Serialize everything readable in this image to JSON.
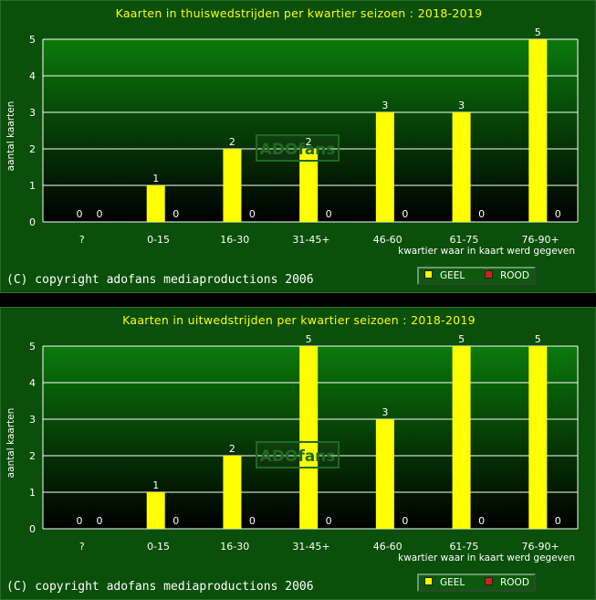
{
  "colors": {
    "geel": "#ffff00",
    "rood": "#cc2222",
    "background": "#0a4f0a",
    "gridline": "#ffffff"
  },
  "panels": [
    {
      "title": "Kaarten in thuiswedstrijden per kwartier seizoen : 2018-2019",
      "ylabel": "aantal kaarten",
      "xlabel": "kwartier waar in kaart werd gegeven",
      "copyright": "(C) copyright adofans mediaproductions 2006",
      "watermark": "ADOfans",
      "legend": [
        "GEEL",
        "ROOD"
      ]
    },
    {
      "title": "Kaarten in uitwedstrijden per kwartier seizoen : 2018-2019",
      "ylabel": "aantal kaarten",
      "xlabel": "kwartier waar in kaart werd gegeven",
      "copyright": "(C) copyright adofans mediaproductions 2006",
      "watermark": "ADOfans",
      "legend": [
        "GEEL",
        "ROOD"
      ]
    }
  ],
  "chart_data": [
    {
      "type": "bar",
      "title": "Kaarten in thuiswedstrijden per kwartier seizoen : 2018-2019",
      "xlabel": "kwartier waar in kaart werd gegeven",
      "ylabel": "aantal kaarten",
      "categories": [
        "?",
        "0-15",
        "16-30",
        "31-45+",
        "46-60",
        "61-75",
        "76-90+"
      ],
      "series": [
        {
          "name": "GEEL",
          "values": [
            0,
            1,
            2,
            2,
            3,
            3,
            5
          ]
        },
        {
          "name": "ROOD",
          "values": [
            0,
            0,
            0,
            0,
            0,
            0,
            0
          ]
        }
      ],
      "ylim": [
        0,
        5
      ],
      "yticks": [
        0,
        1,
        2,
        3,
        4,
        5
      ],
      "grid": true,
      "legend": "bottom-right"
    },
    {
      "type": "bar",
      "title": "Kaarten in uitwedstrijden per kwartier seizoen : 2018-2019",
      "xlabel": "kwartier waar in kaart werd gegeven",
      "ylabel": "aantal kaarten",
      "categories": [
        "?",
        "0-15",
        "16-30",
        "31-45+",
        "46-60",
        "61-75",
        "76-90+"
      ],
      "series": [
        {
          "name": "GEEL",
          "values": [
            0,
            1,
            2,
            5,
            3,
            5,
            5
          ]
        },
        {
          "name": "ROOD",
          "values": [
            0,
            0,
            0,
            0,
            0,
            0,
            0
          ]
        }
      ],
      "ylim": [
        0,
        5
      ],
      "yticks": [
        0,
        1,
        2,
        3,
        4,
        5
      ],
      "grid": true,
      "legend": "bottom-right"
    }
  ]
}
